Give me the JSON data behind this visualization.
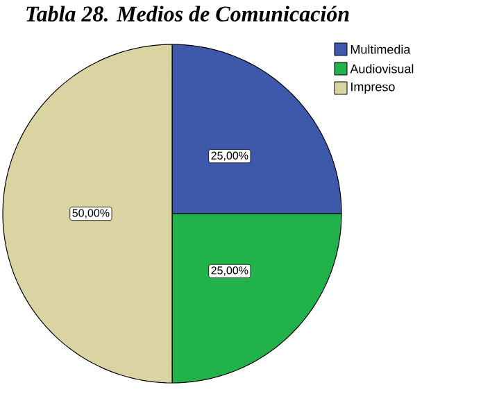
{
  "chart_data": {
    "type": "pie",
    "title": "*Tabla 28. Medios de Comunicación*",
    "categories": [
      "Multimedia",
      "Audiovisual",
      "Impreso"
    ],
    "values": [
      25,
      25,
      50
    ],
    "colors": [
      "#3e58ac",
      "#21b24c",
      "#d9d4a2"
    ],
    "value_labels": [
      "25,00%",
      "25,00%",
      "50,00%"
    ],
    "legend": "top right"
  }
}
